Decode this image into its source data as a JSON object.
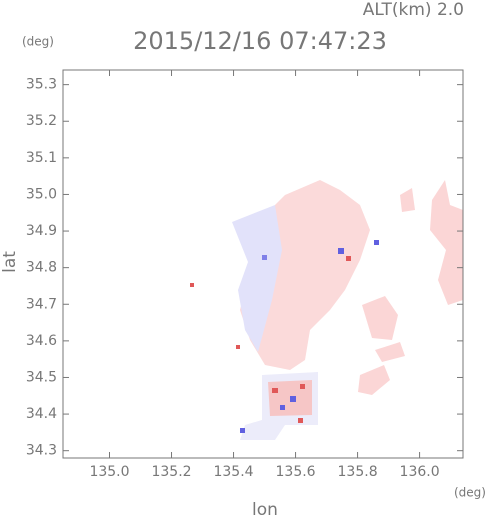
{
  "chart_data": {
    "type": "map",
    "title": "2015/12/16 07:47:23",
    "subtitle": "ALT(km) 2.0",
    "x_label": "lon",
    "y_label": "lat",
    "x_unit": "(deg)",
    "y_unit": "(deg)",
    "xlim": [
      134.85,
      136.14
    ],
    "ylim": [
      34.28,
      35.34
    ],
    "xticks": [
      {
        "value": 135,
        "label": "135.0"
      },
      135.2,
      135.4,
      135.6,
      135.8,
      {
        "value": 136,
        "label": "136.0"
      }
    ],
    "yticks": [
      34.3,
      34.4,
      34.5,
      34.6,
      34.7,
      34.8,
      34.9,
      {
        "value": 35,
        "label": "35.0"
      },
      35.1,
      35.2,
      35.3
    ]
  }
}
